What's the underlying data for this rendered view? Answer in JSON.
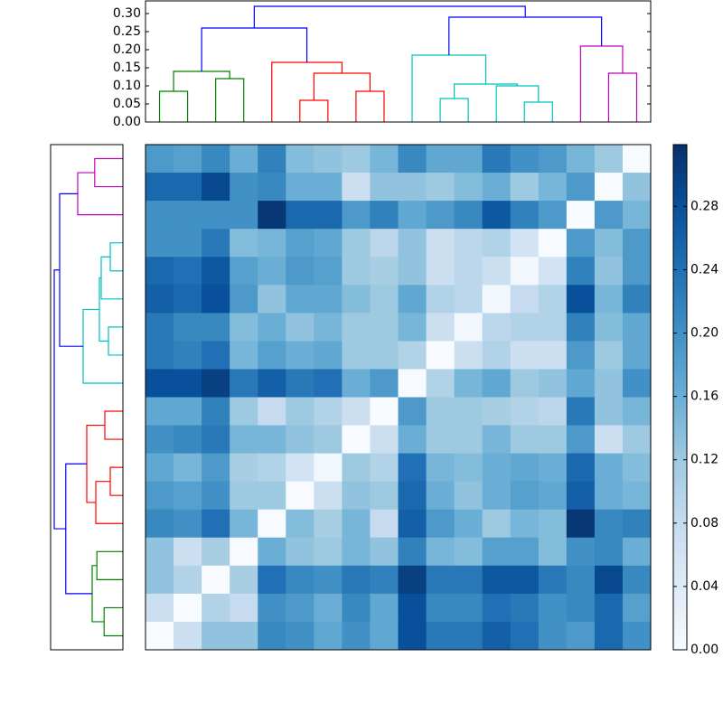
{
  "chart_data": {
    "type": "heatmap",
    "matrix": [
      [
        0.19,
        0.18,
        0.21,
        0.16,
        0.22,
        0.14,
        0.13,
        0.12,
        0.15,
        0.21,
        0.17,
        0.17,
        0.23,
        0.2,
        0.19,
        0.15,
        0.12,
        0.0
      ],
      [
        0.25,
        0.25,
        0.29,
        0.2,
        0.21,
        0.16,
        0.16,
        0.07,
        0.13,
        0.13,
        0.12,
        0.14,
        0.16,
        0.12,
        0.15,
        0.19,
        0.0,
        0.13
      ],
      [
        0.2,
        0.2,
        0.2,
        0.2,
        0.31,
        0.25,
        0.25,
        0.19,
        0.22,
        0.17,
        0.19,
        0.21,
        0.27,
        0.22,
        0.19,
        0.0,
        0.19,
        0.15
      ],
      [
        0.2,
        0.2,
        0.23,
        0.14,
        0.15,
        0.18,
        0.17,
        0.12,
        0.09,
        0.13,
        0.07,
        0.09,
        0.1,
        0.06,
        0.0,
        0.19,
        0.14,
        0.19
      ],
      [
        0.25,
        0.24,
        0.27,
        0.18,
        0.16,
        0.19,
        0.18,
        0.12,
        0.11,
        0.13,
        0.07,
        0.09,
        0.07,
        0.01,
        0.06,
        0.22,
        0.13,
        0.19
      ],
      [
        0.26,
        0.25,
        0.28,
        0.19,
        0.13,
        0.17,
        0.17,
        0.14,
        0.12,
        0.17,
        0.1,
        0.09,
        0.01,
        0.08,
        0.1,
        0.28,
        0.15,
        0.22
      ],
      [
        0.23,
        0.21,
        0.21,
        0.14,
        0.16,
        0.13,
        0.15,
        0.12,
        0.12,
        0.15,
        0.07,
        0.01,
        0.09,
        0.1,
        0.1,
        0.22,
        0.14,
        0.17
      ],
      [
        0.23,
        0.22,
        0.24,
        0.15,
        0.18,
        0.16,
        0.17,
        0.12,
        0.12,
        0.1,
        0.0,
        0.07,
        0.1,
        0.07,
        0.07,
        0.19,
        0.12,
        0.17
      ],
      [
        0.28,
        0.28,
        0.3,
        0.23,
        0.26,
        0.23,
        0.24,
        0.16,
        0.19,
        0.0,
        0.1,
        0.15,
        0.17,
        0.12,
        0.13,
        0.17,
        0.13,
        0.2
      ],
      [
        0.17,
        0.17,
        0.22,
        0.12,
        0.08,
        0.12,
        0.1,
        0.07,
        0.0,
        0.19,
        0.12,
        0.12,
        0.11,
        0.1,
        0.09,
        0.23,
        0.13,
        0.15
      ],
      [
        0.2,
        0.21,
        0.23,
        0.15,
        0.15,
        0.13,
        0.12,
        0.0,
        0.07,
        0.16,
        0.12,
        0.12,
        0.15,
        0.12,
        0.12,
        0.19,
        0.07,
        0.12
      ],
      [
        0.17,
        0.15,
        0.19,
        0.11,
        0.1,
        0.06,
        0.01,
        0.12,
        0.1,
        0.24,
        0.15,
        0.14,
        0.16,
        0.17,
        0.16,
        0.25,
        0.16,
        0.14
      ],
      [
        0.19,
        0.18,
        0.2,
        0.12,
        0.12,
        0.0,
        0.07,
        0.13,
        0.12,
        0.25,
        0.16,
        0.13,
        0.16,
        0.18,
        0.17,
        0.26,
        0.16,
        0.15
      ],
      [
        0.21,
        0.2,
        0.24,
        0.15,
        0.0,
        0.14,
        0.11,
        0.15,
        0.08,
        0.26,
        0.19,
        0.16,
        0.12,
        0.15,
        0.14,
        0.31,
        0.21,
        0.22
      ],
      [
        0.13,
        0.07,
        0.11,
        0.0,
        0.16,
        0.13,
        0.12,
        0.15,
        0.13,
        0.22,
        0.15,
        0.14,
        0.18,
        0.18,
        0.14,
        0.2,
        0.21,
        0.16
      ],
      [
        0.13,
        0.1,
        0.0,
        0.11,
        0.24,
        0.21,
        0.2,
        0.23,
        0.22,
        0.3,
        0.23,
        0.23,
        0.27,
        0.27,
        0.23,
        0.21,
        0.29,
        0.21
      ],
      [
        0.07,
        0.0,
        0.1,
        0.08,
        0.2,
        0.19,
        0.16,
        0.21,
        0.17,
        0.28,
        0.21,
        0.21,
        0.24,
        0.23,
        0.2,
        0.21,
        0.25,
        0.18
      ],
      [
        0.0,
        0.07,
        0.13,
        0.13,
        0.21,
        0.2,
        0.17,
        0.2,
        0.17,
        0.28,
        0.23,
        0.23,
        0.26,
        0.24,
        0.2,
        0.19,
        0.25,
        0.2
      ]
    ],
    "clim": [
      0,
      0.319
    ],
    "cticks": [
      {
        "value": 0,
        "label": "0.00"
      },
      0.04,
      0.08,
      0.12,
      0.16,
      {
        "value": 0.2,
        "label": "0.20"
      },
      0.24,
      0.28
    ],
    "top_dendrogram": {
      "xlim": [
        0,
        180
      ],
      "ylim": [
        0,
        0.335
      ],
      "yticks": [
        {
          "value": 0,
          "label": "0.00"
        },
        0.05,
        {
          "value": 0.1,
          "label": "0.10"
        },
        0.15,
        {
          "value": 0.2,
          "label": "0.20"
        },
        0.25,
        {
          "value": 0.3,
          "label": "0.30"
        }
      ],
      "links": [
        {
          "pos": [
            5,
            5,
            15,
            15
          ],
          "height": [
            0,
            0.085,
            0.085,
            0
          ],
          "color": "#008000"
        },
        {
          "pos": [
            25,
            25,
            35,
            35
          ],
          "height": [
            0,
            0.12,
            0.12,
            0
          ],
          "color": "#008000"
        },
        {
          "pos": [
            10,
            10,
            30,
            30
          ],
          "height": [
            0.085,
            0.14,
            0.14,
            0.12
          ],
          "color": "#008000"
        },
        {
          "pos": [
            55,
            55,
            65,
            65
          ],
          "height": [
            0,
            0.06,
            0.06,
            0
          ],
          "color": "#ff0000"
        },
        {
          "pos": [
            75,
            75,
            85,
            85
          ],
          "height": [
            0,
            0.085,
            0.085,
            0
          ],
          "color": "#ff0000"
        },
        {
          "pos": [
            60,
            60,
            80,
            80
          ],
          "height": [
            0.06,
            0.135,
            0.135,
            0.085
          ],
          "color": "#ff0000"
        },
        {
          "pos": [
            45,
            45,
            70,
            70
          ],
          "height": [
            0,
            0.165,
            0.165,
            0.135
          ],
          "color": "#ff0000"
        },
        {
          "pos": [
            105,
            105,
            115,
            115
          ],
          "height": [
            0,
            0.065,
            0.065,
            0
          ],
          "color": "#00bfbf"
        },
        {
          "pos": [
            135,
            135,
            145,
            145
          ],
          "height": [
            0,
            0.055,
            0.055,
            0
          ],
          "color": "#00bfbf"
        },
        {
          "pos": [
            125,
            125,
            140,
            140
          ],
          "height": [
            0,
            0.1,
            0.1,
            0.055
          ],
          "color": "#00bfbf"
        },
        {
          "pos": [
            110,
            110,
            132.5,
            132.5
          ],
          "height": [
            0.065,
            0.105,
            0.105,
            0.1
          ],
          "color": "#00bfbf"
        },
        {
          "pos": [
            95,
            95,
            121.25,
            121.25
          ],
          "height": [
            0,
            0.185,
            0.185,
            0.105
          ],
          "color": "#00bfbf"
        },
        {
          "pos": [
            165,
            165,
            175,
            175
          ],
          "height": [
            0,
            0.135,
            0.135,
            0
          ],
          "color": "#bf00bf"
        },
        {
          "pos": [
            155,
            155,
            170,
            170
          ],
          "height": [
            0,
            0.21,
            0.21,
            0.135
          ],
          "color": "#bf00bf"
        },
        {
          "pos": [
            20,
            20,
            57.5,
            57.5
          ],
          "height": [
            0.14,
            0.26,
            0.26,
            0.165
          ],
          "color": "#0000ff"
        },
        {
          "pos": [
            108.125,
            108.125,
            162.5,
            162.5
          ],
          "height": [
            0.185,
            0.29,
            0.29,
            0.21
          ],
          "color": "#0000ff"
        },
        {
          "pos": [
            38.75,
            38.75,
            135.3125,
            135.3125
          ],
          "height": [
            0.26,
            0.32,
            0.32,
            0.29
          ],
          "color": "#0000ff"
        }
      ]
    },
    "left_dendrogram": {
      "ylim": [
        0,
        180
      ],
      "xlim": [
        0,
        1
      ],
      "links": [
        {
          "pos": [
            5,
            5,
            15,
            15
          ],
          "height": [
            0,
            0.39,
            0.39,
            0
          ],
          "color": "#bf00bf"
        },
        {
          "pos": [
            10,
            10,
            25,
            25
          ],
          "height": [
            0.39,
            0.625,
            0.625,
            0
          ],
          "color": "#bf00bf"
        },
        {
          "pos": [
            35,
            35,
            45,
            45
          ],
          "height": [
            0,
            0.175,
            0.175,
            0
          ],
          "color": "#00bfbf"
        },
        {
          "pos": [
            40,
            40,
            55,
            55
          ],
          "height": [
            0.175,
            0.3,
            0.3,
            0
          ],
          "color": "#00bfbf"
        },
        {
          "pos": [
            65,
            65,
            75,
            75
          ],
          "height": [
            0,
            0.2,
            0.2,
            0
          ],
          "color": "#00bfbf"
        },
        {
          "pos": [
            47.5,
            47.5,
            70,
            70
          ],
          "height": [
            0.3,
            0.325,
            0.325,
            0.2
          ],
          "color": "#00bfbf"
        },
        {
          "pos": [
            58.75,
            58.75,
            85,
            85
          ],
          "height": [
            0.325,
            0.55,
            0.55,
            0
          ],
          "color": "#00bfbf"
        },
        {
          "pos": [
            17.5,
            17.5,
            71.875,
            71.875
          ],
          "height": [
            0.625,
            0.875,
            0.875,
            0.55
          ],
          "color": "#0000ff"
        },
        {
          "pos": [
            95,
            95,
            105,
            105
          ],
          "height": [
            0,
            0.25,
            0.25,
            0
          ],
          "color": "#ff0000"
        },
        {
          "pos": [
            115,
            115,
            125,
            125
          ],
          "height": [
            0,
            0.175,
            0.175,
            0
          ],
          "color": "#ff0000"
        },
        {
          "pos": [
            120,
            120,
            135,
            135
          ],
          "height": [
            0.175,
            0.375,
            0.375,
            0
          ],
          "color": "#ff0000"
        },
        {
          "pos": [
            100,
            100,
            127.5,
            127.5
          ],
          "height": [
            0.25,
            0.5,
            0.5,
            0.375
          ],
          "color": "#ff0000"
        },
        {
          "pos": [
            145,
            145,
            155,
            155
          ],
          "height": [
            0,
            0.36,
            0.36,
            0
          ],
          "color": "#008000"
        },
        {
          "pos": [
            165,
            165,
            175,
            175
          ],
          "height": [
            0,
            0.26,
            0.26,
            0
          ],
          "color": "#008000"
        },
        {
          "pos": [
            150,
            150,
            170,
            170
          ],
          "height": [
            0.36,
            0.425,
            0.425,
            0.26
          ],
          "color": "#008000"
        },
        {
          "pos": [
            113.75,
            113.75,
            160,
            160
          ],
          "height": [
            0.5,
            0.79,
            0.79,
            0.425
          ],
          "color": "#0000ff"
        },
        {
          "pos": [
            44.6875,
            44.6875,
            136.875,
            136.875
          ],
          "height": [
            0.875,
            0.95,
            0.95,
            0.79
          ],
          "color": "#0000ff"
        }
      ]
    }
  }
}
